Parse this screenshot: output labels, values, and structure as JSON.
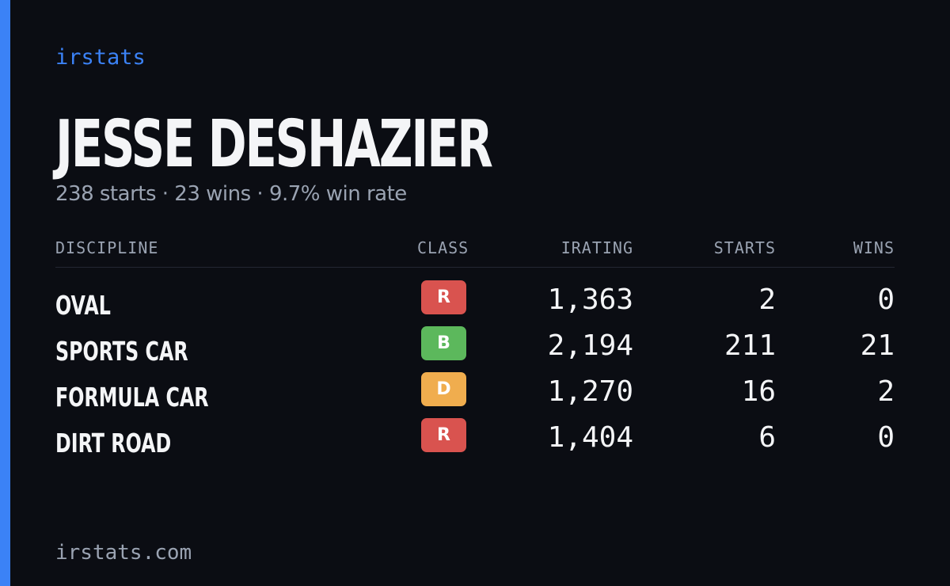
{
  "brand": "irstats",
  "driver": {
    "name": "JESSE DESHAZIER",
    "summary": "238 starts · 23 wins · 9.7% win rate"
  },
  "table": {
    "headers": {
      "discipline": "DISCIPLINE",
      "class": "CLASS",
      "irating": "IRATING",
      "starts": "STARTS",
      "wins": "WINS"
    },
    "rows": [
      {
        "discipline": "OVAL",
        "class": "R",
        "class_color": "#d9534f",
        "irating": "1,363",
        "starts": "2",
        "wins": "0"
      },
      {
        "discipline": "SPORTS CAR",
        "class": "B",
        "class_color": "#5cb85c",
        "irating": "2,194",
        "starts": "211",
        "wins": "21"
      },
      {
        "discipline": "FORMULA CAR",
        "class": "D",
        "class_color": "#f0ad4e",
        "irating": "1,270",
        "starts": "16",
        "wins": "2"
      },
      {
        "discipline": "DIRT ROAD",
        "class": "R",
        "class_color": "#d9534f",
        "irating": "1,404",
        "starts": "6",
        "wins": "0"
      }
    ]
  },
  "footer": "irstats.com",
  "colors": {
    "accent": "#3b82f6",
    "background": "#0b0d13",
    "text": "#f4f5f7",
    "muted": "#9aa3b2"
  }
}
